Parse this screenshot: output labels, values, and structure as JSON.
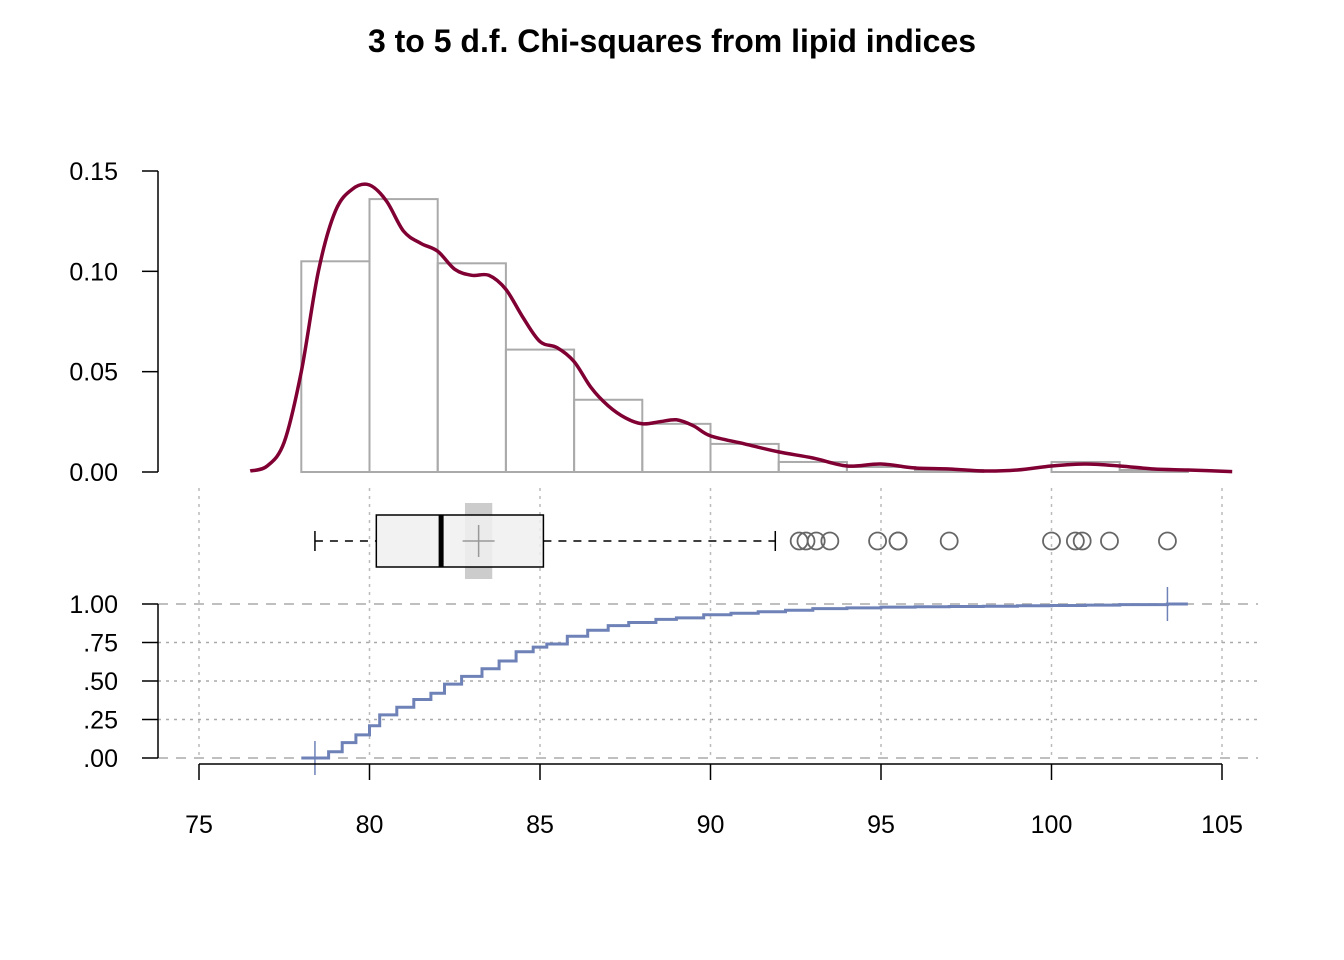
{
  "chart_data": {
    "type": "histogram-boxplot-ecdf",
    "title": "3 to 5 d.f. Chi-squares from lipid indices",
    "colors": {
      "histogram_border": "#aaaaaa",
      "density": "#800033",
      "ecdf": "#6f82b8",
      "box_fill": "#f0f0f0",
      "mean_band": "#cccccc",
      "grid": "#bbbbbb",
      "outlier": "#666666"
    },
    "x_axis": {
      "range": [
        75,
        105
      ],
      "tick_values": [
        75,
        80,
        85,
        90,
        95,
        100,
        105
      ],
      "tick_labels": [
        "75",
        "80",
        "85",
        "90",
        "95",
        "100",
        "105"
      ],
      "grid": true
    },
    "histogram": {
      "bin_edges": [
        78,
        80,
        82,
        84,
        86,
        88,
        90,
        92,
        94,
        96,
        98,
        100,
        102,
        104
      ],
      "density": [
        0.105,
        0.136,
        0.104,
        0.061,
        0.036,
        0.024,
        0.014,
        0.005,
        0.0025,
        0.001,
        0,
        0.005,
        0.001
      ],
      "y_axis": {
        "range": [
          0,
          0.15
        ],
        "tick_values": [
          0,
          0.05,
          0.1,
          0.15
        ],
        "tick_labels": [
          "0.00",
          "0.05",
          "0.10",
          "0.15"
        ]
      }
    },
    "density_curve": {
      "x": [
        76.5,
        77.0,
        77.5,
        78.0,
        78.5,
        79.0,
        79.5,
        80.0,
        80.5,
        81.0,
        81.5,
        82.0,
        82.5,
        83.0,
        83.5,
        84.0,
        84.5,
        85.0,
        85.5,
        86.0,
        86.5,
        87.0,
        87.5,
        88.0,
        88.5,
        89.0,
        89.5,
        90.0,
        91.0,
        92.0,
        93.0,
        94.0,
        95.0,
        96.0,
        97.0,
        98.0,
        99.0,
        100.0,
        101.0,
        102.0,
        103.0,
        104.0,
        105.3
      ],
      "y": [
        0.0005,
        0.003,
        0.015,
        0.05,
        0.1,
        0.13,
        0.141,
        0.143,
        0.135,
        0.12,
        0.114,
        0.11,
        0.101,
        0.098,
        0.098,
        0.091,
        0.077,
        0.065,
        0.062,
        0.055,
        0.042,
        0.033,
        0.027,
        0.024,
        0.025,
        0.026,
        0.023,
        0.018,
        0.014,
        0.01,
        0.007,
        0.003,
        0.004,
        0.002,
        0.0015,
        0.0005,
        0.001,
        0.003,
        0.004,
        0.003,
        0.0015,
        0.001,
        0.0002
      ]
    },
    "boxplot": {
      "whisker_low": 78.4,
      "q1": 80.2,
      "median": 82.1,
      "q3": 85.1,
      "whisker_high": 91.9,
      "mean": 83.2,
      "mean_band": [
        82.8,
        83.6
      ],
      "outliers": [
        92.6,
        92.8,
        93.1,
        93.5,
        94.9,
        95.5,
        95.5,
        97.0,
        100.0,
        100.7,
        100.9,
        101.7,
        103.4
      ]
    },
    "ecdf": {
      "x": [
        78.0,
        78.4,
        78.8,
        79.2,
        79.6,
        80.0,
        80.3,
        80.8,
        81.3,
        81.8,
        82.2,
        82.7,
        83.3,
        83.8,
        84.3,
        84.8,
        85.2,
        85.8,
        86.4,
        87.0,
        87.6,
        88.4,
        89.0,
        89.8,
        90.6,
        91.4,
        92.2,
        93.0,
        94.0,
        95.0,
        96.0,
        97.0,
        98.0,
        99.0,
        100.0,
        101.0,
        102.0,
        103.4,
        104.0
      ],
      "y": [
        0.0,
        0.0,
        0.04,
        0.1,
        0.15,
        0.21,
        0.28,
        0.33,
        0.38,
        0.42,
        0.48,
        0.53,
        0.58,
        0.63,
        0.69,
        0.72,
        0.74,
        0.79,
        0.83,
        0.86,
        0.88,
        0.9,
        0.91,
        0.93,
        0.94,
        0.95,
        0.96,
        0.97,
        0.975,
        0.98,
        0.982,
        0.984,
        0.986,
        0.988,
        0.99,
        0.993,
        0.996,
        1.0,
        1.0
      ],
      "end_markers": [
        78.4,
        103.4
      ],
      "y_axis": {
        "range": [
          0,
          1
        ],
        "tick_values": [
          0,
          0.25,
          0.5,
          0.75,
          1.0
        ],
        "tick_labels": [
          ".00",
          ".25",
          ".50",
          ".75",
          "1.00"
        ]
      }
    }
  }
}
